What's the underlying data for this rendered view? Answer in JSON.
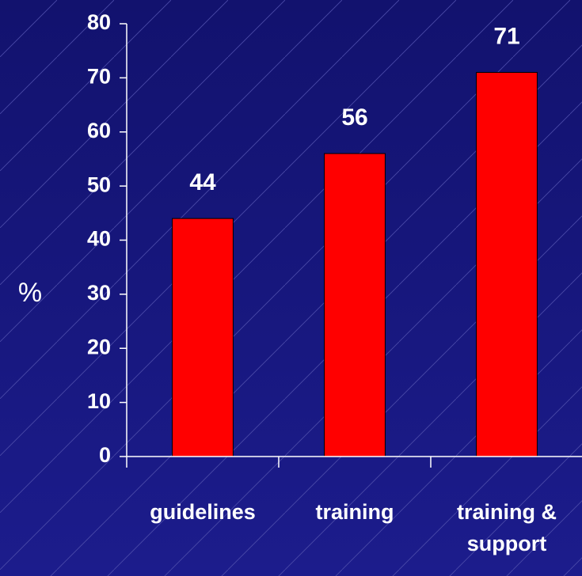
{
  "chart_data": {
    "type": "bar",
    "y_label": "%",
    "categories": [
      "guidelines",
      "training",
      "training & support"
    ],
    "values": [
      44,
      56,
      71
    ],
    "color": "#ff0000",
    "ylim": [
      0,
      80
    ],
    "yticks": [
      0,
      10,
      20,
      30,
      40,
      50,
      60,
      70,
      80
    ],
    "grid": false
  }
}
